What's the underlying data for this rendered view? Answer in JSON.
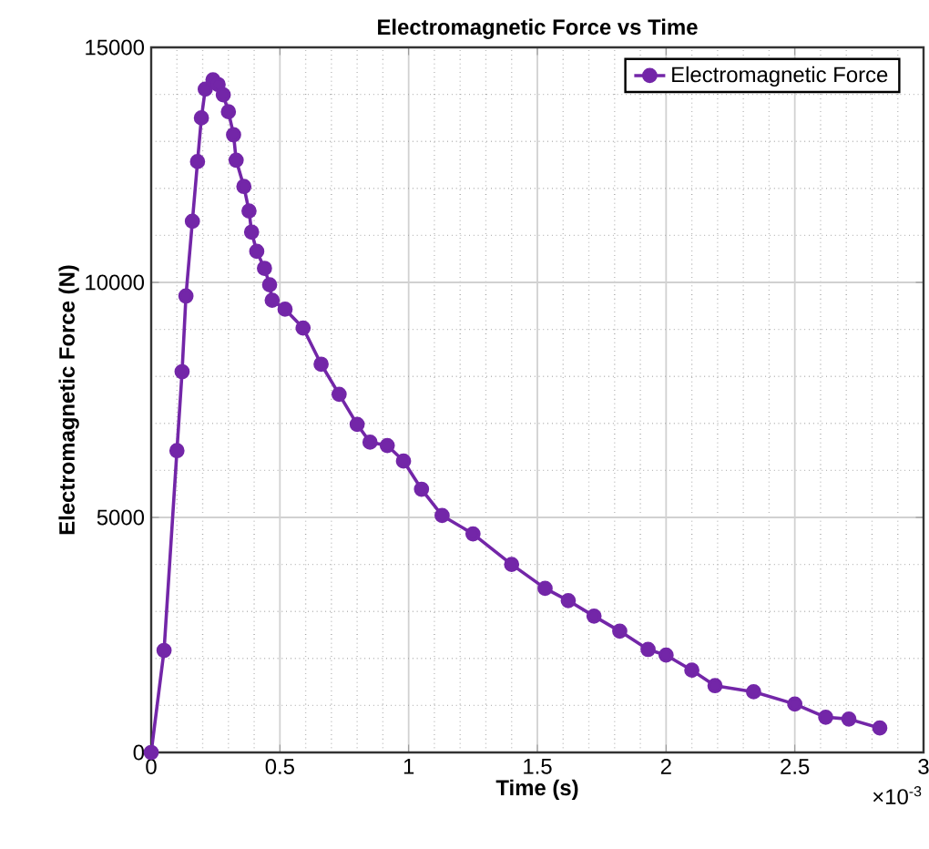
{
  "chart_data": {
    "type": "line",
    "title": "Electromagnetic Force vs Time",
    "xlabel": "Time (s)",
    "ylabel": "Electromagnetic Force (N)",
    "x": [
      0,
      0.05,
      0.1,
      0.12,
      0.135,
      0.16,
      0.18,
      0.195,
      0.21,
      0.24,
      0.26,
      0.28,
      0.3,
      0.32,
      0.33,
      0.36,
      0.38,
      0.39,
      0.41,
      0.44,
      0.46,
      0.47,
      0.52,
      0.59,
      0.66,
      0.73,
      0.8,
      0.85,
      0.917,
      0.98,
      1.05,
      1.13,
      1.25,
      1.4,
      1.53,
      1.62,
      1.72,
      1.82,
      1.93,
      2.0,
      2.1,
      2.19,
      2.34,
      2.5,
      2.62,
      2.71,
      2.83
    ],
    "series": [
      {
        "name": "Electromagnetic Force",
        "color": "#7326a8",
        "values": [
          0,
          2170,
          6420,
          8100,
          9710,
          11300,
          12570,
          13500,
          14110,
          14310,
          14210,
          13990,
          13630,
          13140,
          12600,
          12040,
          11520,
          11070,
          10660,
          10300,
          9950,
          9620,
          9430,
          9030,
          8260,
          7620,
          6980,
          6600,
          6530,
          6200,
          5600,
          5040,
          4650,
          4000,
          3490,
          3230,
          2900,
          2580,
          2190,
          2070,
          1750,
          1420,
          1290,
          1030,
          750,
          710,
          520
        ]
      }
    ],
    "xlim": [
      0,
      3
    ],
    "ylim": [
      0,
      15000
    ],
    "xticks": [
      0,
      0.5,
      1,
      1.5,
      2,
      2.5,
      3
    ],
    "yticks": [
      0,
      5000,
      10000,
      15000
    ],
    "annotations": [
      "×10$^{-3}$"
    ],
    "grid": true,
    "legend": "top right",
    "marker": "circle",
    "line_style": "solid"
  }
}
